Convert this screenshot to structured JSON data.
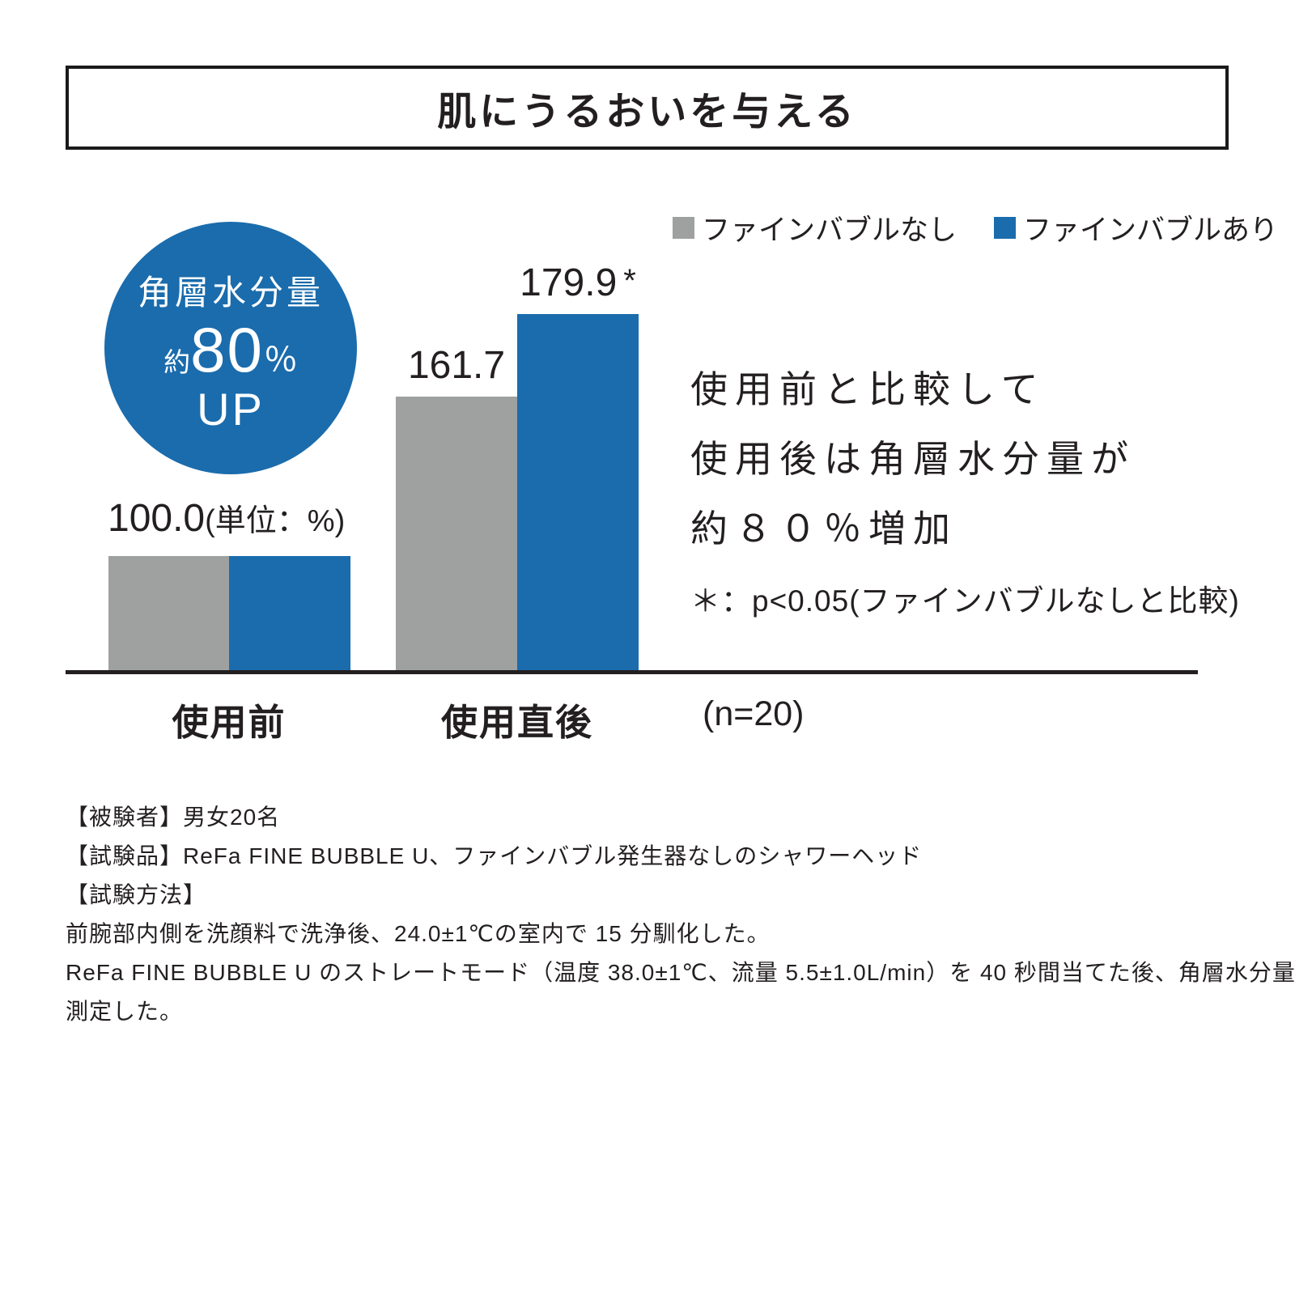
{
  "title": "肌にうるおいを与える",
  "legend": {
    "items": [
      {
        "label": "ファインバブルなし",
        "color": "#9FA0A0"
      },
      {
        "label": "ファインバブルあり",
        "color": "#1A6CAD"
      }
    ]
  },
  "badge": {
    "title": "角層水分量",
    "approx": "約",
    "number": "80",
    "percent": "％",
    "suffix": "UP"
  },
  "chart_data": {
    "type": "bar",
    "categories": [
      "使用前",
      "使用直後"
    ],
    "series": [
      {
        "name": "ファインバブルなし",
        "color": "#9FA0A0",
        "values": [
          100.0,
          161.7
        ]
      },
      {
        "name": "ファインバブルあり",
        "color": "#1A6CAD",
        "values": [
          100.0,
          179.9
        ]
      }
    ],
    "annotations": {
      "before_label": "100.0",
      "before_unit": "(単位：%)",
      "after_gray_label": "161.7",
      "after_blue_label": "179.9",
      "significance_marker": "*",
      "n_label": "(n=20)"
    },
    "baseline_value": 100,
    "grid": false,
    "legend_position": "top-right"
  },
  "callout": {
    "lines": [
      "使用前と比較して",
      "使用後は角層水分量が",
      "約８０％増加"
    ]
  },
  "significance_note": "＊：p<0.05(ファインバブルなしと比較)",
  "notes": [
    "【被験者】男女20名",
    "【試験品】ReFa FINE BUBBLE U、ファインバブル発生器なしのシャワーヘッド",
    "【試験方法】",
    "前腕部内側を洗顔料で洗浄後、24.0±1℃の室内で 15 分馴化した。",
    "ReFa FINE BUBBLE U のストレートモード（温度 38.0±1℃、流量 5.5±1.0L/min）を 40 秒間当てた後、角層水分量を",
    "測定した。"
  ]
}
